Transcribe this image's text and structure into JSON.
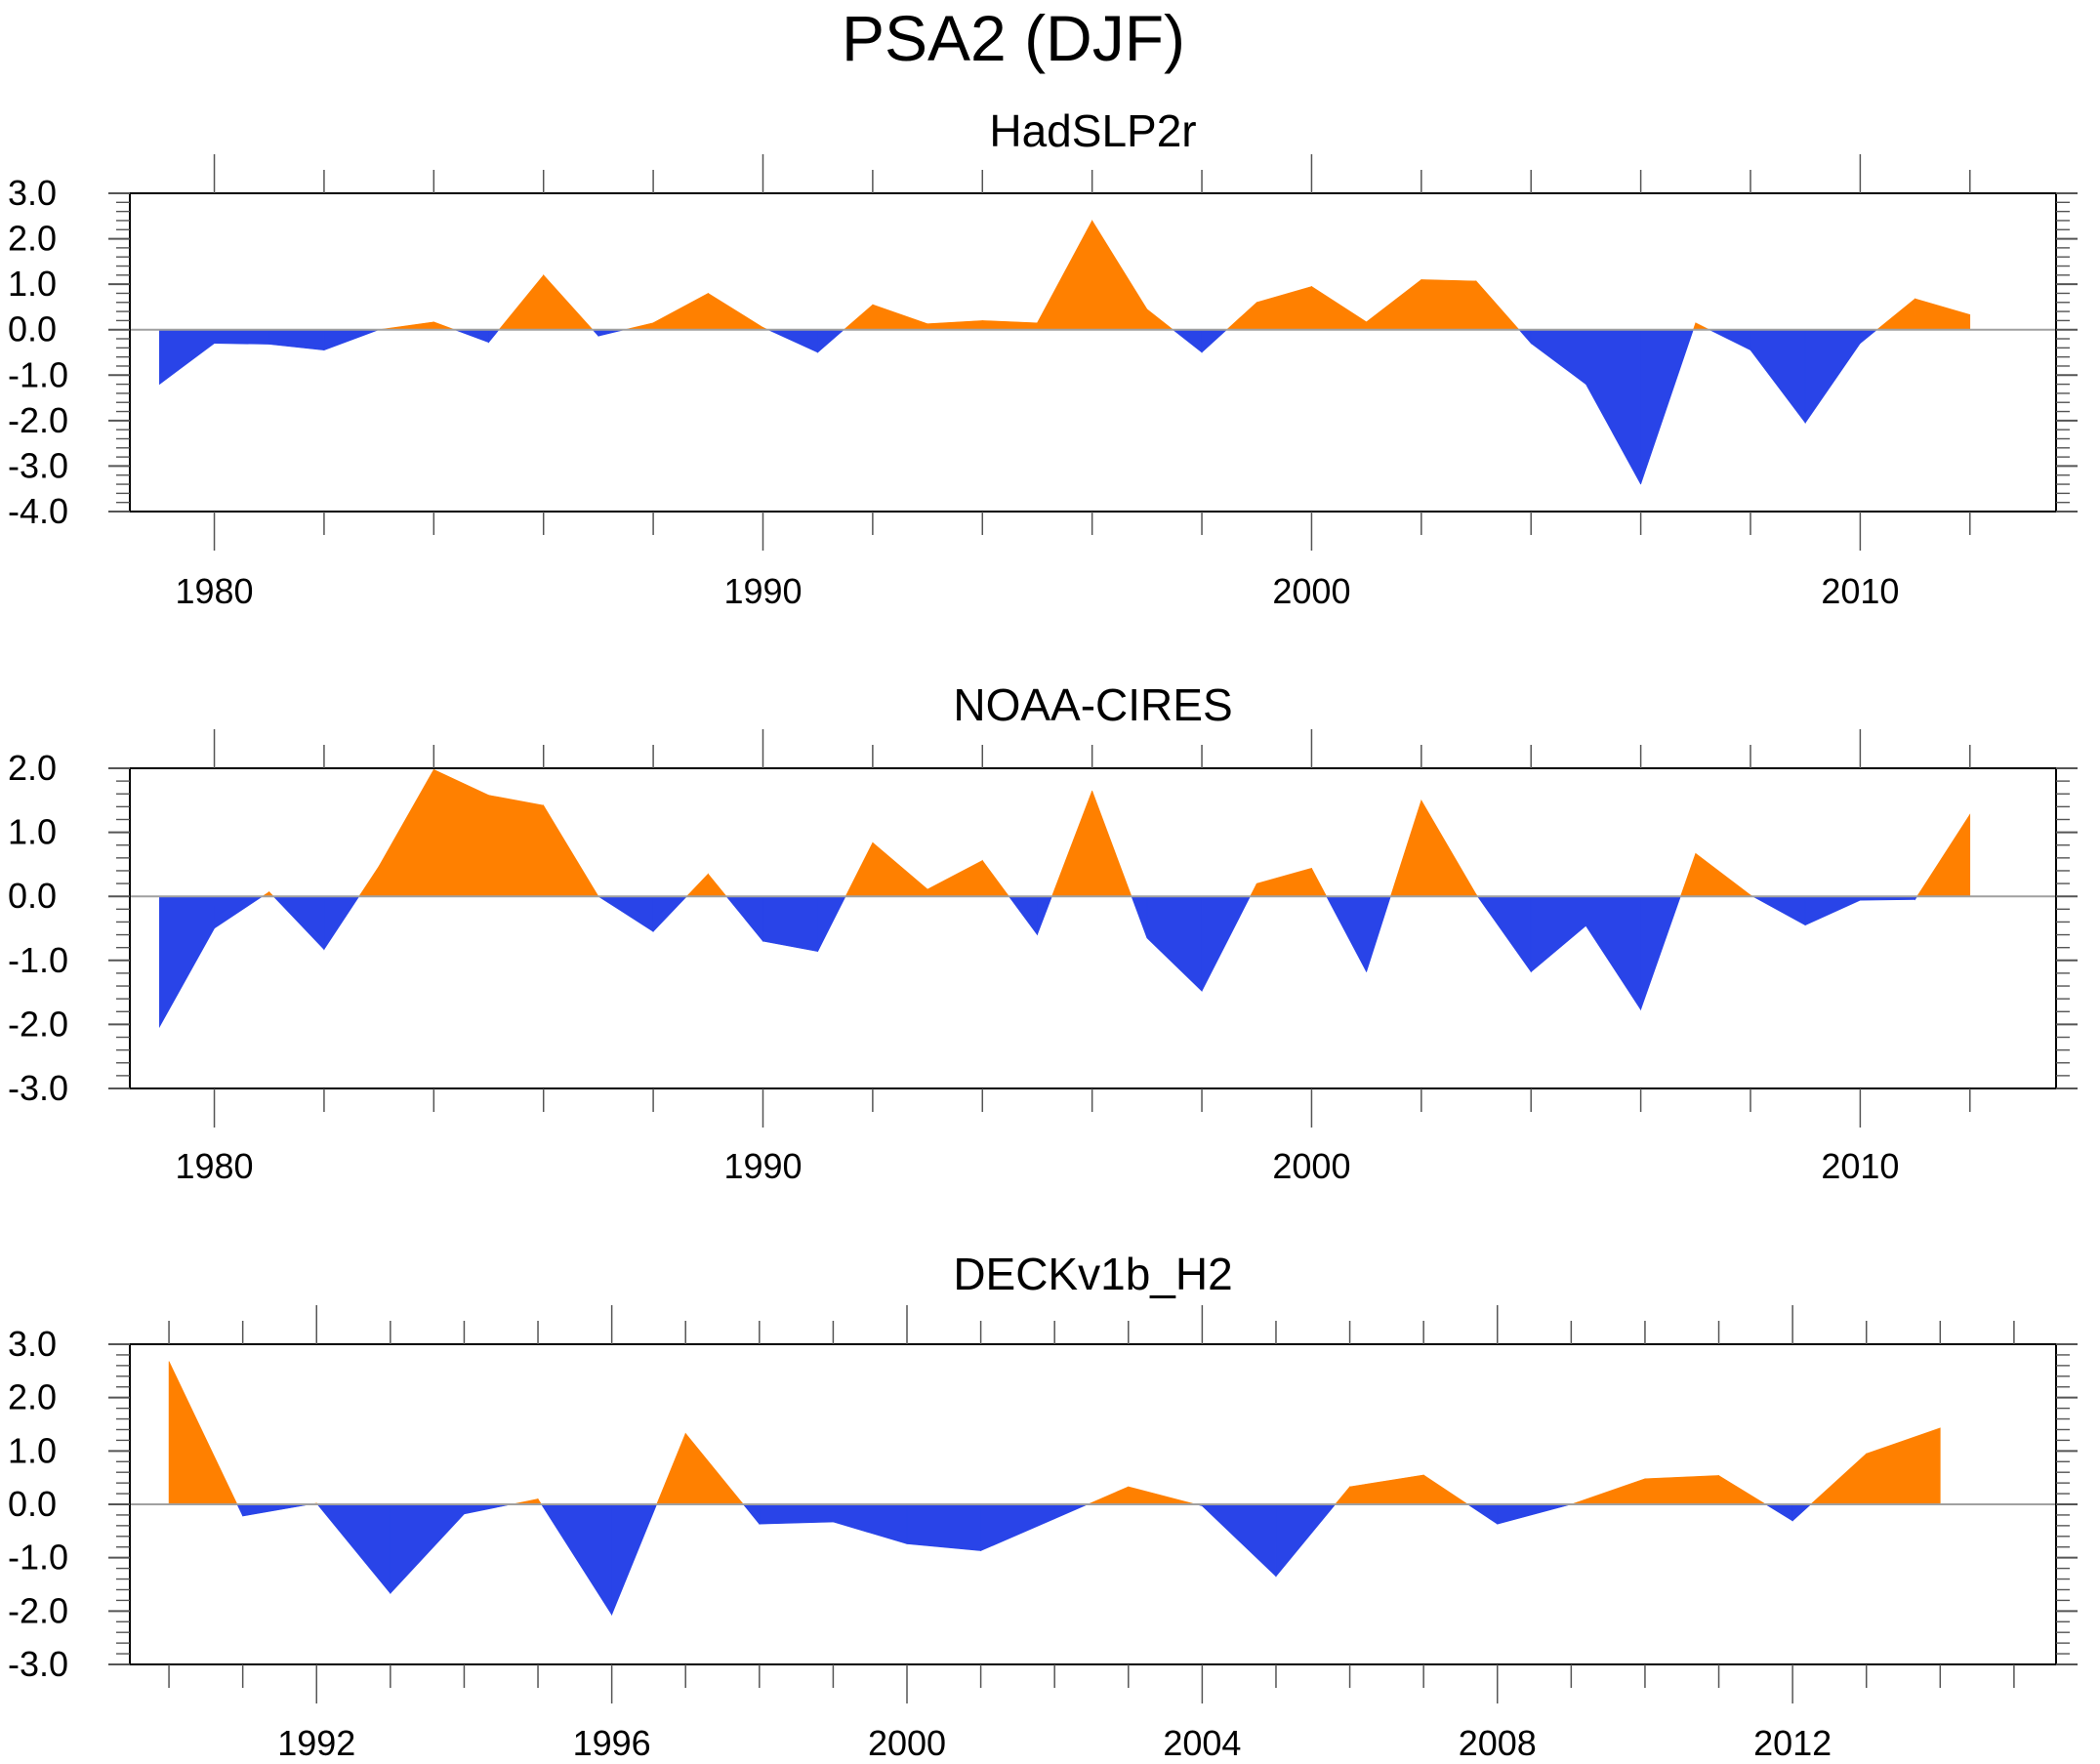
{
  "figure": {
    "title": "PSA2 (DJF)"
  },
  "colors": {
    "positive": "#FF8000",
    "negative": "#2944E8",
    "zero_line": "#A0A0A0",
    "frame": "#000000"
  },
  "chart_data": [
    {
      "type": "area",
      "title": "HadSLP2r",
      "xlabel": "",
      "ylabel": "",
      "xlim": [
        1978.46,
        2013.57
      ],
      "ylim": [
        -4.0,
        3.0
      ],
      "x_major_ticks": [
        1980,
        1990,
        2000,
        2010
      ],
      "x_tick_labels": [
        "1980",
        "1990",
        "2000",
        "2010"
      ],
      "x_minor_step": 2,
      "y_ticks": [
        3.0,
        2.0,
        1.0,
        0.0,
        -1.0,
        -2.0,
        -3.0,
        -4.0
      ],
      "y_tick_labels": [
        "3.0",
        "2.0",
        "1.0",
        "0.0",
        "-1.0",
        "-2.0",
        "-3.0",
        "-4.0"
      ],
      "grid": false,
      "legend": "none",
      "x": [
        1979,
        1980,
        1981,
        1982,
        1983,
        1984,
        1985,
        1986,
        1987,
        1988,
        1989,
        1990,
        1991,
        1992,
        1993,
        1994,
        1995,
        1996,
        1997,
        1998,
        1999,
        2000,
        2001,
        2002,
        2003,
        2004,
        2005,
        2006,
        2007,
        2008,
        2009,
        2010,
        2011,
        2012
      ],
      "values": [
        -1.2,
        -0.3,
        -0.32,
        -0.45,
        0.0,
        0.17,
        -0.28,
        1.2,
        -0.14,
        0.15,
        0.8,
        0.05,
        -0.5,
        0.55,
        0.13,
        0.2,
        0.15,
        2.4,
        0.45,
        -0.5,
        0.6,
        0.95,
        0.17,
        1.1,
        1.07,
        -0.3,
        -1.2,
        -3.4,
        0.15,
        -0.45,
        -2.05,
        -0.3,
        0.68,
        0.33
      ]
    },
    {
      "type": "area",
      "title": "NOAA-CIRES",
      "xlabel": "",
      "ylabel": "",
      "xlim": [
        1978.46,
        2013.57
      ],
      "ylim": [
        -3.0,
        2.0
      ],
      "x_major_ticks": [
        1980,
        1990,
        2000,
        2010
      ],
      "x_tick_labels": [
        "1980",
        "1990",
        "2000",
        "2010"
      ],
      "x_minor_step": 2,
      "y_ticks": [
        2.0,
        1.0,
        0.0,
        -1.0,
        -2.0,
        -3.0
      ],
      "y_tick_labels": [
        "2.0",
        "1.0",
        "0.0",
        "-1.0",
        "-2.0",
        "-3.0"
      ],
      "grid": false,
      "legend": "none",
      "x": [
        1979,
        1980,
        1981,
        1982,
        1983,
        1984,
        1985,
        1986,
        1987,
        1988,
        1989,
        1990,
        1991,
        1992,
        1993,
        1994,
        1995,
        1996,
        1997,
        1998,
        1999,
        2000,
        2001,
        2002,
        2003,
        2004,
        2005,
        2006,
        2007,
        2008,
        2009,
        2010,
        2011,
        2012
      ],
      "values": [
        -2.04,
        -0.5,
        0.07,
        -0.83,
        0.47,
        1.98,
        1.58,
        1.42,
        0.0,
        -0.55,
        0.35,
        -0.7,
        -0.86,
        0.84,
        0.11,
        0.56,
        -0.6,
        1.65,
        -0.65,
        -1.48,
        0.2,
        0.44,
        -1.18,
        1.5,
        0.03,
        -1.18,
        -0.46,
        -1.77,
        0.67,
        0.02,
        -0.45,
        -0.06,
        -0.05,
        1.28
      ]
    },
    {
      "type": "area",
      "title": "DECKv1b_H2",
      "xlabel": "",
      "ylabel": "",
      "xlim": [
        1989.47,
        2015.57
      ],
      "ylim": [
        -3.0,
        3.0
      ],
      "x_major_ticks": [
        1992,
        1996,
        2000,
        2004,
        2008,
        2012
      ],
      "x_tick_labels": [
        "1992",
        "1996",
        "2000",
        "2004",
        "2008",
        "2012"
      ],
      "x_minor_step": 1,
      "y_ticks": [
        3.0,
        2.0,
        1.0,
        0.0,
        -1.0,
        -2.0,
        -3.0
      ],
      "y_tick_labels": [
        "3.0",
        "2.0",
        "1.0",
        "0.0",
        "-1.0",
        "-2.0",
        "-3.0"
      ],
      "grid": false,
      "legend": "none",
      "x": [
        1990,
        1991,
        1992,
        1993,
        1994,
        1995,
        1996,
        1997,
        1998,
        1999,
        2000,
        2001,
        2002,
        2003,
        2004,
        2005,
        2006,
        2007,
        2008,
        2009,
        2010,
        2011,
        2012,
        2013,
        2014
      ],
      "values": [
        2.68,
        -0.22,
        0.02,
        -1.67,
        -0.18,
        0.1,
        -2.07,
        1.33,
        -0.37,
        -0.33,
        -0.74,
        -0.87,
        -0.27,
        0.33,
        -0.03,
        -1.35,
        0.33,
        0.55,
        -0.37,
        0.0,
        0.48,
        0.54,
        -0.31,
        0.95,
        1.43
      ]
    }
  ]
}
